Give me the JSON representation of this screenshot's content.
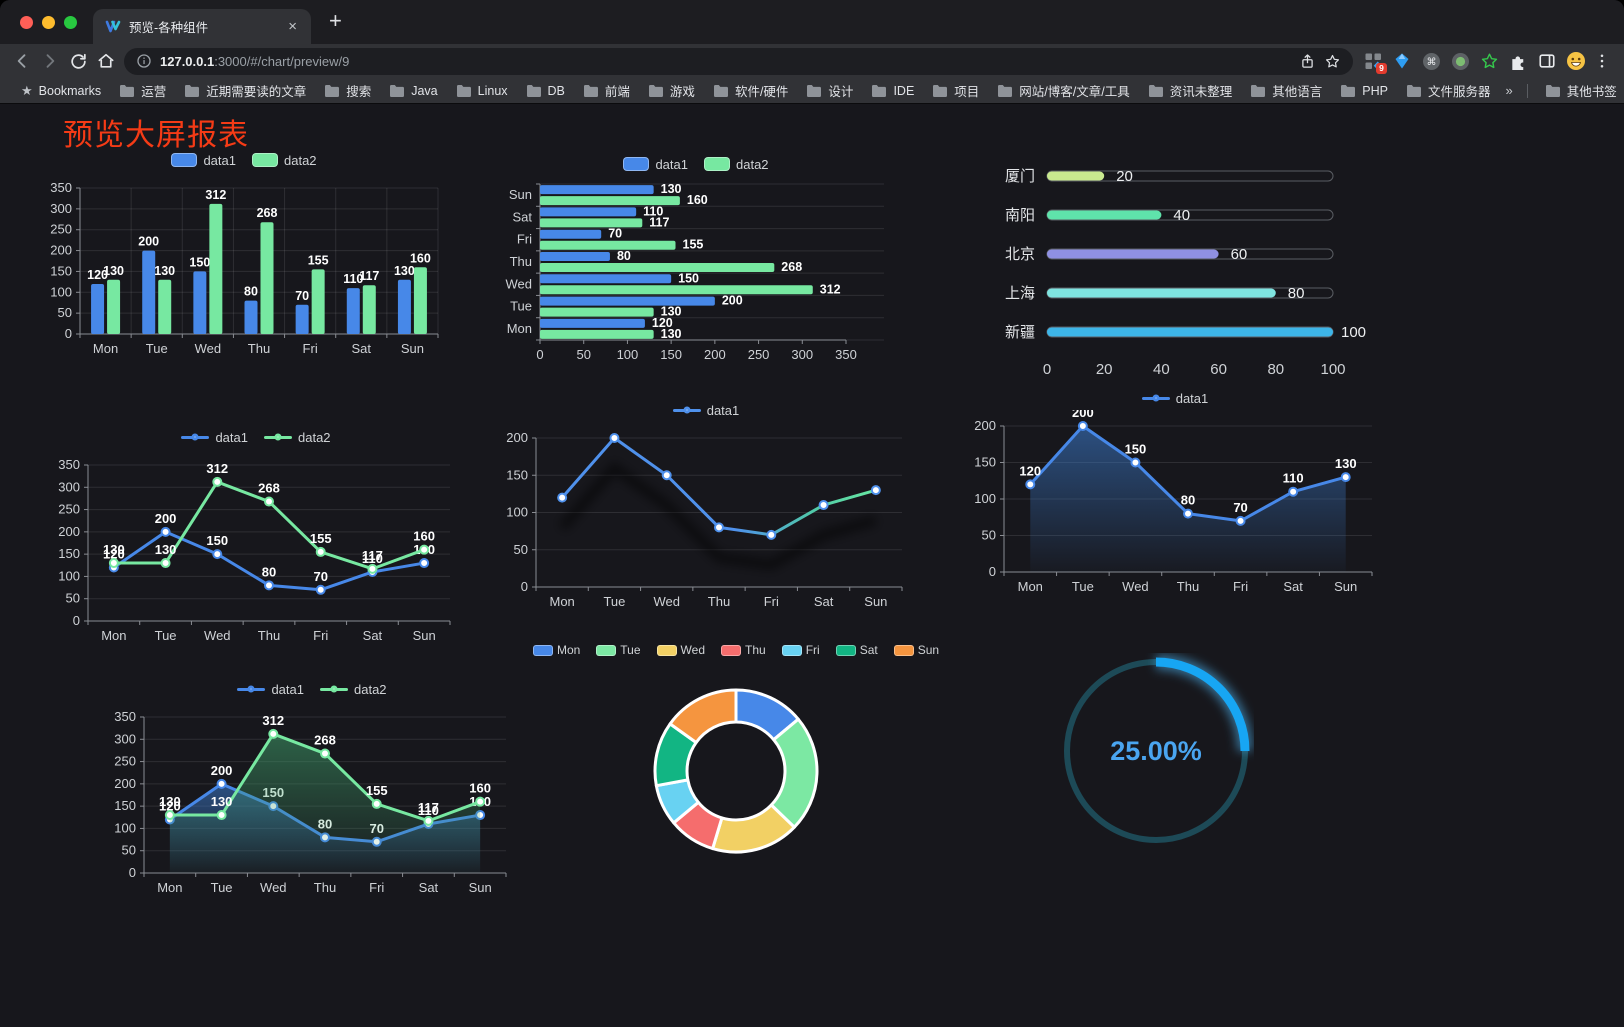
{
  "browser": {
    "tab": {
      "title": "预览-各种组件",
      "close_glyph": "×",
      "new_tab_glyph": "+"
    },
    "url": {
      "host": "127.0.0.1",
      "rest": ":3000/#/chart/preview/9"
    },
    "extensions": [
      "grid-blocks",
      "gem",
      "command",
      "record",
      "green-star",
      "puzzle",
      "side-panel",
      "avatar-emoji"
    ],
    "extension_badge": "9",
    "bookmarks_label": "Bookmarks",
    "bookmark_folders": [
      "运营",
      "近期需要读的文章",
      "搜索",
      "Java",
      "Linux",
      "DB",
      "前端",
      "游戏",
      "软件/硬件",
      "设计",
      "IDE",
      "项目",
      "网站/博客/文章/工具",
      "资讯未整理",
      "其他语言",
      "PHP",
      "文件服务器"
    ],
    "bookmarks_overflow": "»",
    "other_bookmarks": "其他书签"
  },
  "page": {
    "title": "预览大屏报表",
    "title_color": "#f53b16",
    "background": "#17171c"
  },
  "chart_data": [
    {
      "id": "c1",
      "type": "bar",
      "categories": [
        "Mon",
        "Tue",
        "Wed",
        "Thu",
        "Fri",
        "Sat",
        "Sun"
      ],
      "series": [
        {
          "name": "data1",
          "color": "#4788e8",
          "values": [
            120,
            200,
            150,
            80,
            70,
            110,
            130
          ]
        },
        {
          "name": "data2",
          "color": "#77e8a1",
          "values": [
            130,
            130,
            312,
            268,
            155,
            117,
            160
          ]
        }
      ],
      "ylim": [
        0,
        350
      ],
      "ystep": 50,
      "grid": true,
      "legend_position": "top"
    },
    {
      "id": "c2",
      "type": "bar-horizontal",
      "categories": [
        "Mon",
        "Tue",
        "Wed",
        "Thu",
        "Fri",
        "Sat",
        "Sun"
      ],
      "series": [
        {
          "name": "data1",
          "color": "#4788e8",
          "values": [
            120,
            200,
            150,
            80,
            70,
            110,
            130
          ]
        },
        {
          "name": "data2",
          "color": "#77e8a1",
          "values": [
            130,
            130,
            312,
            268,
            155,
            117,
            160
          ]
        }
      ],
      "xlim": [
        0,
        350
      ],
      "xstep": 50,
      "legend_position": "top"
    },
    {
      "id": "c3",
      "type": "progress",
      "items": [
        {
          "label": "厦门",
          "value": 20,
          "color": "#c9e98f"
        },
        {
          "label": "南阳",
          "value": 40,
          "color": "#5fe3ab"
        },
        {
          "label": "北京",
          "value": 60,
          "color": "#8f90e3"
        },
        {
          "label": "上海",
          "value": 80,
          "color": "#7fe4e0"
        },
        {
          "label": "新疆",
          "value": 100,
          "color": "#3db5e8"
        }
      ],
      "max": 100,
      "axis_ticks": [
        0,
        20,
        40,
        60,
        80,
        100
      ]
    },
    {
      "id": "c4",
      "type": "line",
      "categories": [
        "Mon",
        "Tue",
        "Wed",
        "Thu",
        "Fri",
        "Sat",
        "Sun"
      ],
      "series": [
        {
          "name": "data1",
          "color": "#4788e8",
          "values": [
            120,
            200,
            150,
            80,
            70,
            110,
            130
          ]
        },
        {
          "name": "data2",
          "color": "#77e8a1",
          "values": [
            130,
            130,
            312,
            268,
            155,
            117,
            160
          ]
        }
      ],
      "ylim": [
        0,
        350
      ],
      "ystep": 50,
      "labels": true,
      "legend_position": "top"
    },
    {
      "id": "c5",
      "type": "line",
      "categories": [
        "Mon",
        "Tue",
        "Wed",
        "Thu",
        "Fri",
        "Sat",
        "Sun"
      ],
      "series": [
        {
          "name": "data1",
          "color": "#4f91ec",
          "values": [
            120,
            200,
            150,
            80,
            70,
            110,
            130
          ],
          "gradient": [
            {
              "o": 0,
              "c": "#4f91ec"
            },
            {
              "o": 0.55,
              "c": "#4f91ec"
            },
            {
              "o": 0.8,
              "c": "#50c9a8"
            },
            {
              "o": 1,
              "c": "#68e7a2"
            }
          ]
        }
      ],
      "ylim": [
        0,
        200
      ],
      "ystep": 50,
      "labels": false,
      "shadow": true,
      "legend_position": "top"
    },
    {
      "id": "c6",
      "type": "line",
      "categories": [
        "Mon",
        "Tue",
        "Wed",
        "Thu",
        "Fri",
        "Sat",
        "Sun"
      ],
      "series": [
        {
          "name": "data1",
          "color": "#4788e8",
          "values": [
            120,
            200,
            150,
            80,
            70,
            110,
            130
          ],
          "area": "#3d7fd4"
        }
      ],
      "ylim": [
        0,
        200
      ],
      "ystep": 50,
      "labels": true,
      "legend_position": "top"
    },
    {
      "id": "c7",
      "type": "line",
      "categories": [
        "Mon",
        "Tue",
        "Wed",
        "Thu",
        "Fri",
        "Sat",
        "Sun"
      ],
      "series": [
        {
          "name": "data1",
          "color": "#4788e8",
          "values": [
            120,
            200,
            150,
            80,
            70,
            110,
            130
          ],
          "area": "#3d7fd4"
        },
        {
          "name": "data2",
          "color": "#77e8a1",
          "values": [
            130,
            130,
            312,
            268,
            155,
            117,
            160
          ],
          "area": "#3f9e6a"
        }
      ],
      "ylim": [
        0,
        350
      ],
      "ystep": 50,
      "labels": true,
      "legend_position": "top"
    },
    {
      "id": "c8",
      "type": "pie",
      "legend_position": "top",
      "items": [
        {
          "label": "Mon",
          "value": 120,
          "color": "#4788e8"
        },
        {
          "label": "Tue",
          "value": 200,
          "color": "#7ce8a3"
        },
        {
          "label": "Wed",
          "value": 150,
          "color": "#f2d064"
        },
        {
          "label": "Thu",
          "value": 80,
          "color": "#f56d6d"
        },
        {
          "label": "Fri",
          "value": 70,
          "color": "#68d2f2"
        },
        {
          "label": "Sat",
          "value": 110,
          "color": "#12b583"
        },
        {
          "label": "Sun",
          "value": 130,
          "color": "#f5953f"
        }
      ],
      "inner_radius": 49,
      "outer_radius": 81
    },
    {
      "id": "c9",
      "type": "gauge",
      "value": 25,
      "text": "25.00%",
      "arc_color": "#17a6f3",
      "track_color": "#1d4a57",
      "text_color": "#4aa5f0"
    }
  ]
}
